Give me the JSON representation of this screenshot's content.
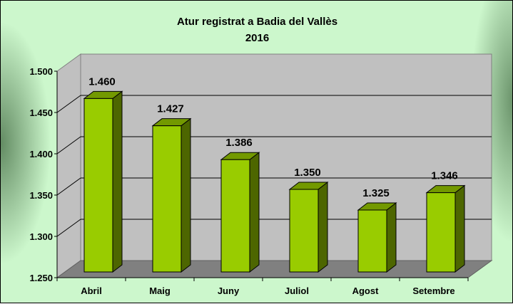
{
  "chart_data": {
    "type": "bar",
    "title": "Atur registrat a Badia del Vallès",
    "subtitle": "2016",
    "categories": [
      "Abril",
      "Maig",
      "Juny",
      "Juliol",
      "Agost",
      "Setembre"
    ],
    "values": [
      1460,
      1427,
      1386,
      1350,
      1325,
      1346
    ],
    "value_labels": [
      "1.460",
      "1.427",
      "1.386",
      "1.350",
      "1.325",
      "1.346"
    ],
    "yticks": [
      "1.250",
      "1.300",
      "1.350",
      "1.400",
      "1.450",
      "1.500"
    ],
    "ylim": [
      1250,
      1500
    ],
    "xlabel": "",
    "ylabel": "",
    "grid": true,
    "colors": {
      "bar_front": "#99cc00",
      "bar_side": "#4d6600",
      "bar_top": "#739900",
      "wall": "#c0c0c0",
      "floor": "#808080"
    }
  }
}
